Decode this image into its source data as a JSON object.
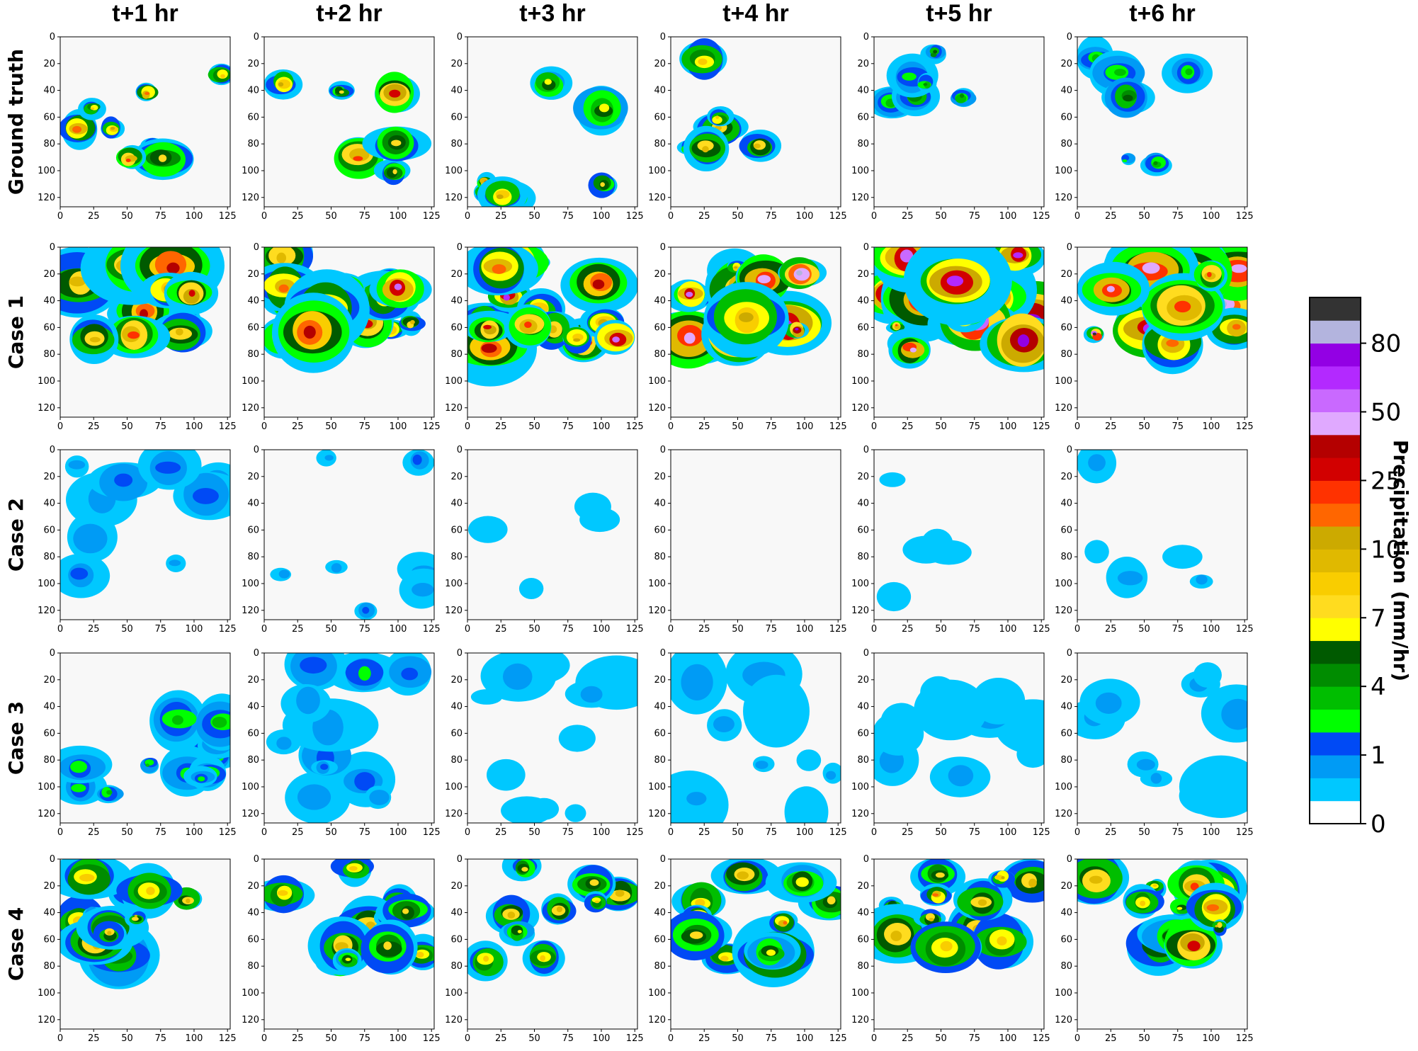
{
  "chart_data": {
    "type": "heatmap",
    "column_titles": [
      "t+1 hr",
      "t+2 hr",
      "t+3 hr",
      "t+4 hr",
      "t+5 hr",
      "t+6 hr"
    ],
    "row_titles": [
      "Ground truth",
      "Case 1",
      "Case 2",
      "Case 3",
      "Case 4"
    ],
    "x_ticks": [
      "0",
      "25",
      "50",
      "75",
      "100",
      "125"
    ],
    "y_ticks": [
      "0",
      "20",
      "40",
      "60",
      "80",
      "100",
      "120"
    ],
    "xlim": [
      0,
      127
    ],
    "ylim": [
      127,
      0
    ],
    "colorbar": {
      "label": "Precipitation (mm/hr)",
      "tick_labels": [
        "0",
        "1",
        "4",
        "7",
        "10",
        "25",
        "50",
        "80"
      ],
      "levels": [
        "0",
        "0.1",
        "0.5",
        "1",
        "2",
        "3",
        "4",
        "5",
        "6",
        "7",
        "8",
        "9",
        "10",
        "15",
        "20",
        "25",
        "30",
        "40",
        "50",
        "60",
        "70",
        "80",
        "90"
      ],
      "colors": [
        "#ffffff",
        "#00c8ff",
        "#009bf5",
        "#004af5",
        "#00ff00",
        "#00be00",
        "#008c00",
        "#005a00",
        "#ffff00",
        "#ffdc1f",
        "#f9cd00",
        "#e0b900",
        "#ccaa00",
        "#ff6600",
        "#ff3200",
        "#d20000",
        "#b40000",
        "#e0a9ff",
        "#c969ff",
        "#b329ff",
        "#9300e4",
        "#b3b4de",
        "#333333"
      ]
    },
    "panels_description": {
      "Ground truth": [
        {
          "time": "t+1 hr",
          "max_level_mm_per_hr": 25
        },
        {
          "time": "t+2 hr",
          "max_level_mm_per_hr": 25
        },
        {
          "time": "t+3 hr",
          "max_level_mm_per_hr": 25
        },
        {
          "time": "t+4 hr",
          "max_level_mm_per_hr": 10
        },
        {
          "time": "t+5 hr",
          "max_level_mm_per_hr": 4
        },
        {
          "time": "t+6 hr",
          "max_level_mm_per_hr": 4
        }
      ],
      "Case 1": [
        {
          "time": "t+1 hr",
          "max_level_mm_per_hr": 50
        },
        {
          "time": "t+2 hr",
          "max_level_mm_per_hr": 50
        },
        {
          "time": "t+3 hr",
          "max_level_mm_per_hr": 50
        },
        {
          "time": "t+4 hr",
          "max_level_mm_per_hr": 80
        },
        {
          "time": "t+5 hr",
          "max_level_mm_per_hr": 90
        },
        {
          "time": "t+6 hr",
          "max_level_mm_per_hr": 90
        }
      ],
      "Case 2": [
        {
          "time": "t+1 hr",
          "max_level_mm_per_hr": 1
        },
        {
          "time": "t+2 hr",
          "max_level_mm_per_hr": 1
        },
        {
          "time": "t+3 hr",
          "max_level_mm_per_hr": 0.5
        },
        {
          "time": "t+4 hr",
          "max_level_mm_per_hr": 0
        },
        {
          "time": "t+5 hr",
          "max_level_mm_per_hr": 0.5
        },
        {
          "time": "t+6 hr",
          "max_level_mm_per_hr": 1
        }
      ],
      "Case 3": [
        {
          "time": "t+1 hr",
          "max_level_mm_per_hr": 4
        },
        {
          "time": "t+2 hr",
          "max_level_mm_per_hr": 2
        },
        {
          "time": "t+3 hr",
          "max_level_mm_per_hr": 1
        },
        {
          "time": "t+4 hr",
          "max_level_mm_per_hr": 1
        },
        {
          "time": "t+5 hr",
          "max_level_mm_per_hr": 1
        },
        {
          "time": "t+6 hr",
          "max_level_mm_per_hr": 1
        }
      ],
      "Case 4": [
        {
          "time": "t+1 hr",
          "max_level_mm_per_hr": 10
        },
        {
          "time": "t+2 hr",
          "max_level_mm_per_hr": 10
        },
        {
          "time": "t+3 hr",
          "max_level_mm_per_hr": 10
        },
        {
          "time": "t+4 hr",
          "max_level_mm_per_hr": 15
        },
        {
          "time": "t+5 hr",
          "max_level_mm_per_hr": 20
        },
        {
          "time": "t+6 hr",
          "max_level_mm_per_hr": 25
        }
      ]
    },
    "grid": false
  }
}
